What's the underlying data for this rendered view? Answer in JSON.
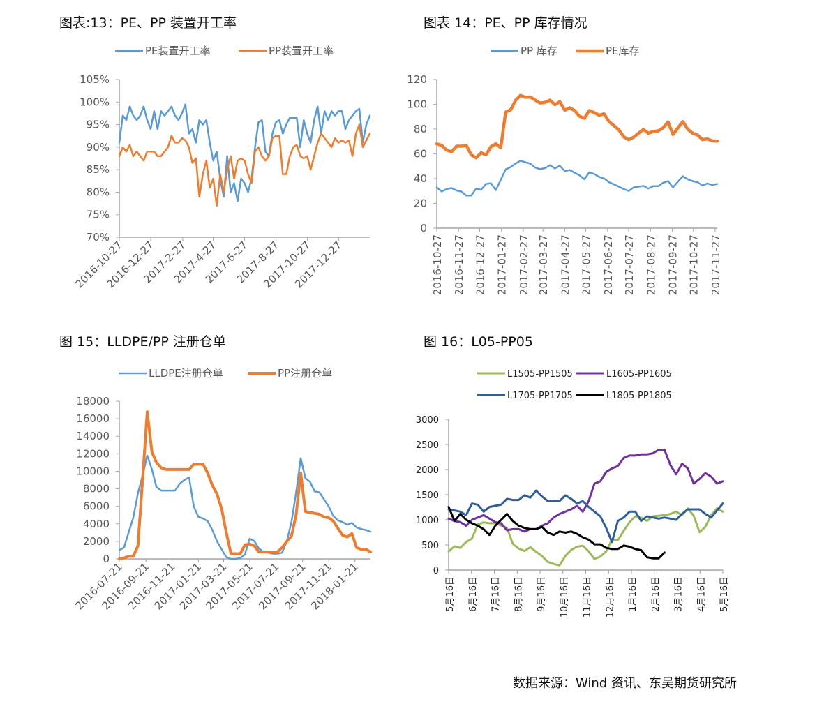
{
  "footer": "数据来源：Wind 资讯、东吴期货研究所",
  "chart_data": [
    {
      "type": "line",
      "title": "图表:13：PE、PP 装置开工率",
      "ylim": [
        70,
        105
      ],
      "yticks": [
        "70%",
        "75%",
        "80%",
        "85%",
        "90%",
        "95%",
        "100%",
        "105%"
      ],
      "xlim": [
        "2016-10-27",
        "2018-02-25"
      ],
      "xticks": [
        "2016-10-27",
        "2016-12-27",
        "2017-2-27",
        "2017-4-27",
        "2017-6-27",
        "2017-8-27",
        "2017-10-27",
        "2017-12-27"
      ],
      "legend": "top",
      "grid": false,
      "series": [
        {
          "name": "PE装置开工率",
          "color": "#5B9BD5",
          "values": [
            91,
            97,
            96,
            99,
            97,
            96,
            97,
            99,
            96,
            94,
            98,
            94,
            98,
            97,
            98,
            99,
            97,
            96,
            97.5,
            99.5,
            93,
            94,
            91,
            96,
            95,
            96,
            91,
            87,
            89,
            83,
            79,
            88,
            80,
            82,
            78,
            83,
            82,
            80,
            83,
            90,
            95.5,
            96,
            89,
            88,
            93,
            95.5,
            96,
            93,
            95,
            96.5,
            96.5,
            96.5,
            90,
            96,
            93,
            91,
            96,
            99,
            93,
            98,
            96,
            98,
            97,
            98,
            98,
            94,
            96,
            97,
            98,
            98.5,
            91,
            95,
            97
          ]
        },
        {
          "name": "PP装置开工率",
          "color": "#ED7D31",
          "values": [
            88,
            90,
            89,
            90.5,
            88,
            89,
            88,
            87,
            89,
            89,
            89,
            88,
            88,
            89,
            90,
            92.5,
            91,
            91,
            92,
            91.5,
            90,
            86.5,
            87.5,
            79,
            84,
            87,
            81,
            83,
            77,
            84,
            80,
            85,
            88,
            83,
            87,
            87.5,
            87,
            84,
            82,
            89,
            90,
            88,
            87,
            88,
            92,
            92.5,
            92.5,
            84,
            84,
            88,
            90,
            90.5,
            88,
            87.5,
            88,
            85,
            88,
            91,
            93,
            92,
            91,
            90,
            92,
            91,
            91.5,
            91,
            91.5,
            88,
            93,
            95,
            90,
            91.5,
            93
          ]
        }
      ]
    },
    {
      "type": "line",
      "title": "图表 14：PE、PP 库存情况",
      "ylim": [
        0,
        120
      ],
      "yticks": [
        "0",
        "20",
        "40",
        "60",
        "80",
        "100",
        "120"
      ],
      "xlim": [
        "2016-10-27",
        "2017-11-30"
      ],
      "xticks": [
        "2016-10-27",
        "2016-11-27",
        "2016-12-27",
        "2017-01-27",
        "2017-02-27",
        "2017-03-27",
        "2017-04-27",
        "2017-05-27",
        "2017-06-27",
        "2017-07-27",
        "2017-08-27",
        "2017-09-27",
        "2017-10-27",
        "2017-11-27"
      ],
      "legend": "top",
      "grid": false,
      "series": [
        {
          "name": "PP 库存",
          "color": "#5B9BD5",
          "values": [
            32.9,
            29.7,
            31.6,
            32.4,
            30.5,
            29.5,
            26.3,
            26.3,
            32,
            31,
            35.7,
            36.3,
            30.7,
            39.1,
            47.4,
            49.3,
            52.1,
            54.5,
            53.2,
            52.1,
            48.9,
            47.6,
            48.5,
            50.8,
            48.3,
            50.4,
            46.1,
            47,
            44.8,
            42.7,
            39.5,
            45.1,
            43.8,
            41.4,
            40.1,
            37.1,
            35.4,
            33.5,
            31.6,
            30.1,
            32.9,
            33.5,
            34.2,
            32,
            33.9,
            33.9,
            36.7,
            38,
            32.9,
            37.6,
            41.9,
            39.5,
            38,
            37.1,
            34.4,
            36.1,
            34.8,
            35.7
          ]
        },
        {
          "name": "PE库存",
          "color": "#ED7D31",
          "values": [
            68.1,
            66.8,
            63,
            61.7,
            66.2,
            66.2,
            66.8,
            59.2,
            56.8,
            60.9,
            59.2,
            65.8,
            68.1,
            64.9,
            93.7,
            95.5,
            103.1,
            107.2,
            105.7,
            105.9,
            103.4,
            101,
            101.6,
            103.4,
            99.7,
            102.1,
            95.2,
            97.2,
            95,
            90.3,
            88.8,
            95,
            93.3,
            91.2,
            92.3,
            86.1,
            82.8,
            79.4,
            73.7,
            71.5,
            73.4,
            76.7,
            79.7,
            76.7,
            78.1,
            78.6,
            80.9,
            85.8,
            75.6,
            80.9,
            86.1,
            79.9,
            76.7,
            75.2,
            71.5,
            72,
            70.5,
            70.3
          ]
        }
      ]
    },
    {
      "type": "line",
      "title": "图 15：LLDPE/PP 注册仓单",
      "ylim": [
        0,
        18000
      ],
      "yticks": [
        "0",
        "2000",
        "4000",
        "6000",
        "8000",
        "10000",
        "12000",
        "14000",
        "16000",
        "18000"
      ],
      "xlim": [
        "2016-07-21",
        "2018-02-26"
      ],
      "xticks": [
        "2016-07-21",
        "2016-09-21",
        "2016-11-21",
        "2017-01-21",
        "2017-03-21",
        "2017-05-21",
        "2017-07-21",
        "2017-09-21",
        "2017-11-21",
        "2018-01-21"
      ],
      "legend": "top",
      "grid": false,
      "series": [
        {
          "name": "LLDPE注册仓单",
          "color": "#5B9BD5",
          "values": [
            1000,
            1300,
            3000,
            4700,
            7500,
            9500,
            11800,
            10200,
            8200,
            7800,
            7800,
            7800,
            7800,
            8600,
            9000,
            9300,
            6000,
            4800,
            4600,
            4300,
            3300,
            2000,
            1100,
            200,
            0,
            0,
            100,
            500,
            2300,
            2050,
            1200,
            800,
            700,
            600,
            600,
            700,
            2000,
            4200,
            7500,
            11500,
            9200,
            8800,
            7700,
            7600,
            6800,
            6000,
            4900,
            4400,
            4200,
            3900,
            4100,
            3600,
            3400,
            3300,
            3100
          ]
        },
        {
          "name": "PP注册仓单",
          "color": "#ED7D31",
          "values": [
            0,
            100,
            300,
            300,
            1500,
            9000,
            16800,
            12200,
            11000,
            10400,
            10200,
            10200,
            10200,
            10200,
            10200,
            10200,
            10800,
            10800,
            10800,
            9800,
            8400,
            7400,
            5700,
            3000,
            600,
            600,
            600,
            1600,
            1700,
            1500,
            800,
            800,
            800,
            800,
            800,
            1300,
            2000,
            2600,
            5000,
            9800,
            5400,
            5300,
            5200,
            5100,
            4800,
            4700,
            4300,
            3500,
            2700,
            2500,
            2900,
            1300,
            1100,
            1100,
            800
          ]
        }
      ]
    },
    {
      "type": "line",
      "title": "图 16：L05-PP05",
      "ylim": [
        0,
        3000
      ],
      "yticks": [
        "0",
        "500",
        "1000",
        "1500",
        "2000",
        "2500",
        "3000"
      ],
      "xticks": [
        "5月16日",
        "6月16日",
        "7月16日",
        "8月16日",
        "9月16日",
        "10月16日",
        "11月16日",
        "12月16日",
        "1月16日",
        "2月16日",
        "3月16日",
        "4月16日",
        "5月16日"
      ],
      "legend": "top",
      "grid": false,
      "series": [
        {
          "name": "L1505-PP1505",
          "color": "#9BBB59",
          "values": [
            372,
            474,
            442,
            558,
            628,
            907,
            949,
            930,
            930,
            884,
            837,
            521,
            428,
            381,
            456,
            363,
            279,
            163,
            121,
            93,
            279,
            400,
            465,
            484,
            372,
            219,
            270,
            372,
            605,
            591,
            781,
            953,
            1070,
            1042,
            977,
            1070,
            1079,
            1093,
            1116,
            1163,
            1093,
            1228,
            1079,
            753,
            860,
            1093,
            1228,
            1163
          ]
        },
        {
          "name": "L1605-PP1605",
          "color": "#7030A0",
          "values": [
            1023,
            977,
            953,
            884,
            1000,
            1046,
            1093,
            1023,
            953,
            930,
            791,
            814,
            814,
            767,
            814,
            814,
            884,
            930,
            1046,
            1116,
            1163,
            1209,
            1279,
            1163,
            1372,
            1721,
            1767,
            1953,
            2023,
            2069,
            2232,
            2279,
            2279,
            2302,
            2302,
            2325,
            2395,
            2395,
            2093,
            1907,
            2116,
            2023,
            1721,
            1814,
            1930,
            1860,
            1721,
            1767
          ]
        },
        {
          "name": "L1705-PP1705",
          "color": "#2F5F98",
          "values": [
            1209,
            1186,
            1163,
            1093,
            1325,
            1302,
            1163,
            1256,
            1279,
            1302,
            1418,
            1395,
            1395,
            1488,
            1442,
            1581,
            1465,
            1372,
            1372,
            1372,
            1488,
            1418,
            1325,
            1372,
            1256,
            1163,
            1070,
            837,
            558,
            977,
            1046,
            1163,
            1163,
            977,
            1070,
            1046,
            1023,
            1046,
            1023,
            1000,
            1116,
            1209,
            1209,
            1209,
            1116,
            1046,
            1186,
            1325
          ]
        },
        {
          "name": "L1805-PP1805",
          "color": "#000000",
          "values": [
            1256,
            977,
            1116,
            1000,
            930,
            884,
            814,
            698,
            884,
            1000,
            1116,
            977,
            884,
            837,
            814,
            814,
            860,
            744,
            698,
            767,
            744,
            767,
            721,
            651,
            605,
            512,
            512,
            442,
            419,
            419,
            488,
            465,
            419,
            395,
            256,
            233,
            233,
            349,
            null,
            null,
            null,
            null,
            null,
            null,
            null,
            null,
            null,
            null
          ]
        }
      ]
    }
  ]
}
